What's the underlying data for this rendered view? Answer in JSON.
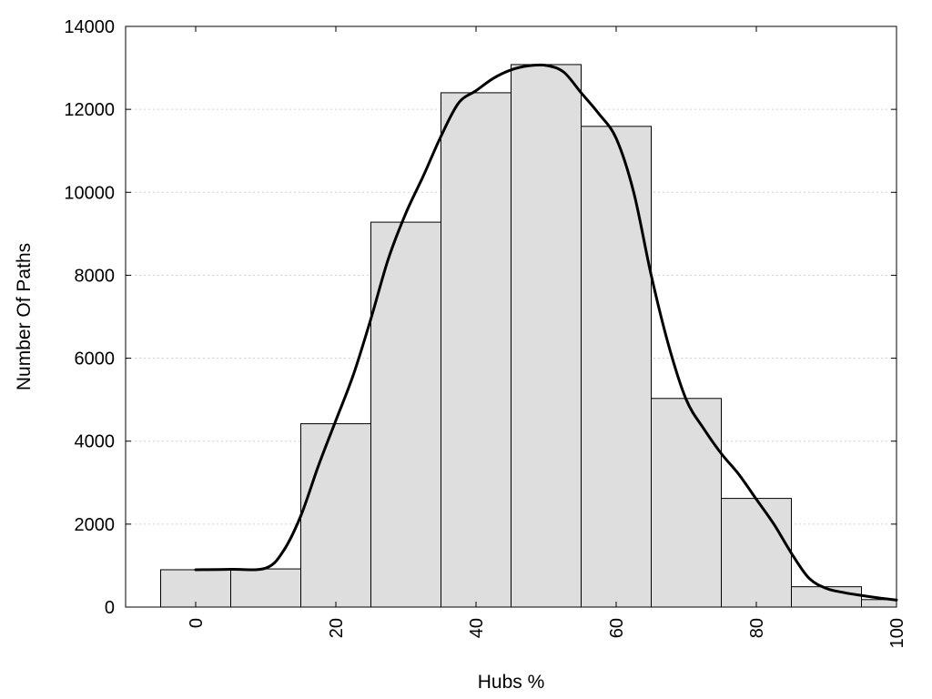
{
  "chart_data": {
    "type": "bar",
    "title": "",
    "xlabel": "Hubs %",
    "ylabel": "Number Of Paths",
    "xlim": [
      -10,
      100
    ],
    "ylim": [
      0,
      14000
    ],
    "xticks": [
      "0",
      "20",
      "40",
      "60",
      "80",
      "100"
    ],
    "xtick_values": [
      0,
      20,
      40,
      60,
      80,
      100
    ],
    "yticks": [
      "0",
      "2000",
      "4000",
      "6000",
      "8000",
      "10000",
      "12000",
      "14000"
    ],
    "ytick_values": [
      0,
      2000,
      4000,
      6000,
      8000,
      10000,
      12000,
      14000
    ],
    "grid": "horizontal dotted",
    "bins": [
      {
        "start": -5,
        "end": 5,
        "value": 900
      },
      {
        "start": 5,
        "end": 15,
        "value": 920
      },
      {
        "start": 15,
        "end": 25,
        "value": 4420
      },
      {
        "start": 25,
        "end": 35,
        "value": 9280
      },
      {
        "start": 35,
        "end": 45,
        "value": 12400
      },
      {
        "start": 45,
        "end": 55,
        "value": 13080
      },
      {
        "start": 55,
        "end": 65,
        "value": 11590
      },
      {
        "start": 65,
        "end": 75,
        "value": 5030
      },
      {
        "start": 75,
        "end": 85,
        "value": 2620
      },
      {
        "start": 85,
        "end": 95,
        "value": 490
      },
      {
        "start": 95,
        "end": 100,
        "value": 180
      }
    ],
    "curve": {
      "x": [
        0,
        5,
        10,
        12.5,
        15,
        17.5,
        20,
        22.5,
        25,
        27.5,
        30,
        32.5,
        35,
        37.5,
        40,
        42.5,
        45,
        47.5,
        50,
        52.5,
        55,
        57.5,
        60,
        62.5,
        65,
        67.5,
        70,
        72.5,
        75,
        77.5,
        80,
        82.5,
        85,
        87.5,
        90,
        92.5,
        95,
        97.5,
        100
      ],
      "y": [
        900,
        910,
        940,
        1350,
        2200,
        3400,
        4500,
        5600,
        6950,
        8400,
        9500,
        10400,
        11350,
        12150,
        12450,
        12750,
        12950,
        13050,
        13060,
        12900,
        12400,
        11900,
        11300,
        10000,
        8000,
        6300,
        5000,
        4300,
        3700,
        3200,
        2600,
        2000,
        1300,
        700,
        450,
        350,
        280,
        220,
        170
      ],
      "color": "#000000"
    },
    "bar_fill": "#dedede",
    "bar_stroke": "#000000"
  }
}
